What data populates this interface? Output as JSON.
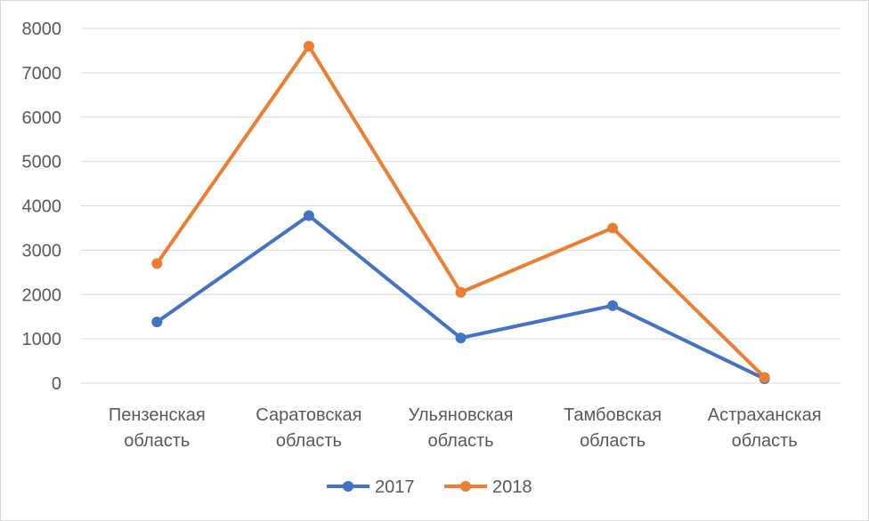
{
  "chart_data": {
    "type": "line",
    "title": "",
    "xlabel": "",
    "ylabel": "",
    "categories": [
      [
        "Пензенская",
        "область"
      ],
      [
        "Саратовская",
        "область"
      ],
      [
        "Ульяновская",
        "область"
      ],
      [
        "Тамбовская",
        "область"
      ],
      [
        "Астраханская",
        "область"
      ]
    ],
    "ylim": [
      0,
      8000
    ],
    "yticks": [
      0,
      1000,
      2000,
      3000,
      4000,
      5000,
      6000,
      7000,
      8000
    ],
    "grid": true,
    "legend_position": "bottom",
    "series": [
      {
        "name": "2017",
        "color": "#4472C4",
        "values": [
          1380,
          3780,
          1020,
          1750,
          100
        ]
      },
      {
        "name": "2018",
        "color": "#ED7D31",
        "values": [
          2700,
          7600,
          2050,
          3500,
          130
        ]
      }
    ]
  }
}
